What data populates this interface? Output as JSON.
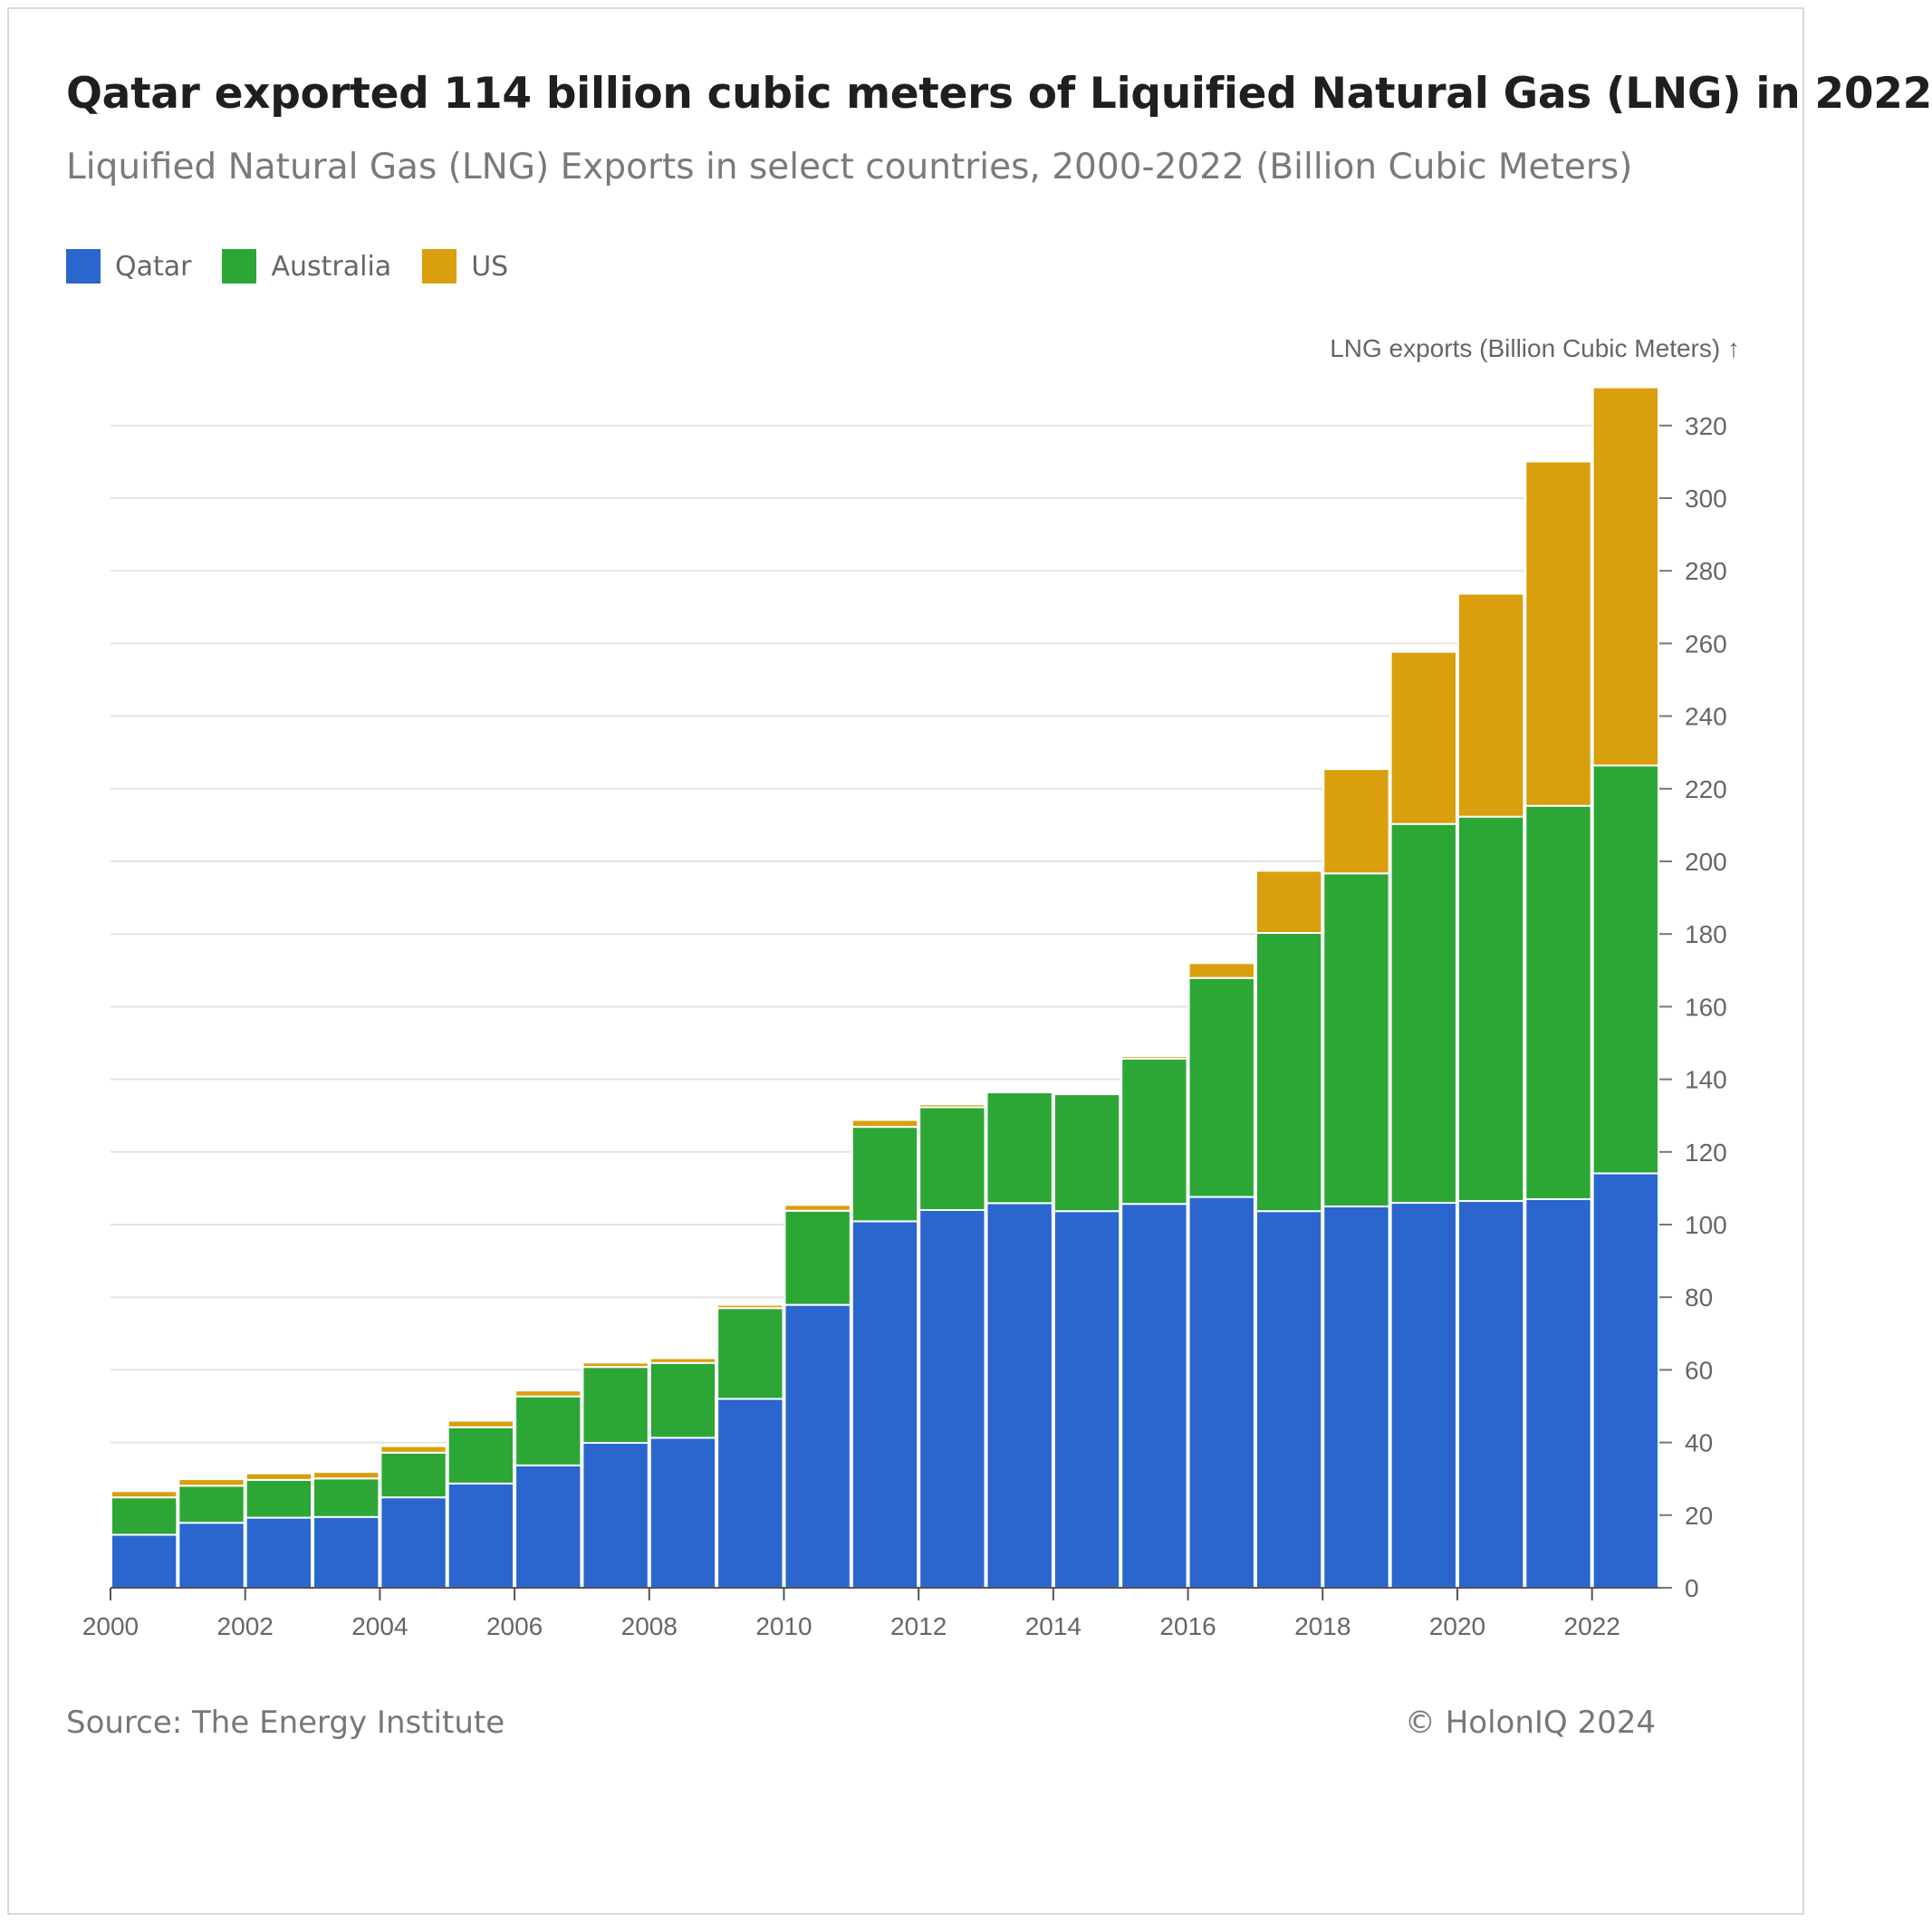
{
  "title": "Qatar exported 114 billion cubic meters of Liquified Natural Gas (LNG) in 2022",
  "subtitle": "Liquified Natural Gas (LNG) Exports in select countries, 2000-2022 (Billion Cubic Meters)",
  "legend": [
    {
      "label": "Qatar",
      "color": "#2a66cd"
    },
    {
      "label": "Australia",
      "color": "#2ca736"
    },
    {
      "label": "US",
      "color": "#d99f0c"
    }
  ],
  "footer": {
    "source": "Source: The Energy Institute",
    "copyright": "© HolonIQ 2024"
  },
  "chart_data": {
    "type": "bar",
    "stacked": true,
    "categories": [
      "2000",
      "2001",
      "2002",
      "2003",
      "2004",
      "2005",
      "2006",
      "2007",
      "2008",
      "2009",
      "2010",
      "2011",
      "2012",
      "2013",
      "2014",
      "2015",
      "2016",
      "2017",
      "2018",
      "2019",
      "2020",
      "2021",
      "2022"
    ],
    "x_tick_labels": [
      "2000",
      "2002",
      "2004",
      "2006",
      "2008",
      "2010",
      "2012",
      "2014",
      "2016",
      "2018",
      "2020",
      "2022"
    ],
    "series": [
      {
        "name": "Qatar",
        "color": "#2a66cd",
        "values": [
          14.6,
          17.9,
          19.3,
          19.5,
          24.9,
          28.7,
          33.7,
          39.9,
          41.3,
          52.0,
          77.9,
          100.9,
          104.0,
          105.9,
          103.7,
          105.7,
          107.6,
          103.7,
          105.0,
          106.0,
          106.5,
          107.0,
          114.1
        ]
      },
      {
        "name": "Australia",
        "color": "#2ca736",
        "values": [
          10.3,
          10.2,
          10.4,
          10.6,
          12.3,
          15.5,
          19.0,
          20.9,
          20.6,
          25.0,
          25.9,
          26.0,
          28.3,
          30.5,
          32.2,
          40.0,
          60.3,
          76.6,
          91.7,
          104.3,
          105.8,
          108.3,
          112.3
        ]
      },
      {
        "name": "US",
        "color": "#d99f0c",
        "values": [
          1.7,
          1.8,
          1.8,
          1.8,
          1.8,
          1.8,
          1.6,
          1.2,
          1.3,
          0.9,
          1.6,
          1.9,
          0.8,
          0.5,
          0.5,
          0.7,
          4.1,
          17.1,
          28.7,
          47.4,
          61.4,
          94.8,
          104.1
        ]
      }
    ],
    "ylabel": "LNG exports (Billion Cubic Meters) ↑",
    "ylim": [
      0,
      330
    ],
    "yticks": [
      0,
      20,
      40,
      60,
      80,
      100,
      120,
      140,
      160,
      180,
      200,
      220,
      240,
      260,
      280,
      300,
      320
    ],
    "y_axis_position": "right",
    "grid": true,
    "legend_position": "top-left"
  }
}
